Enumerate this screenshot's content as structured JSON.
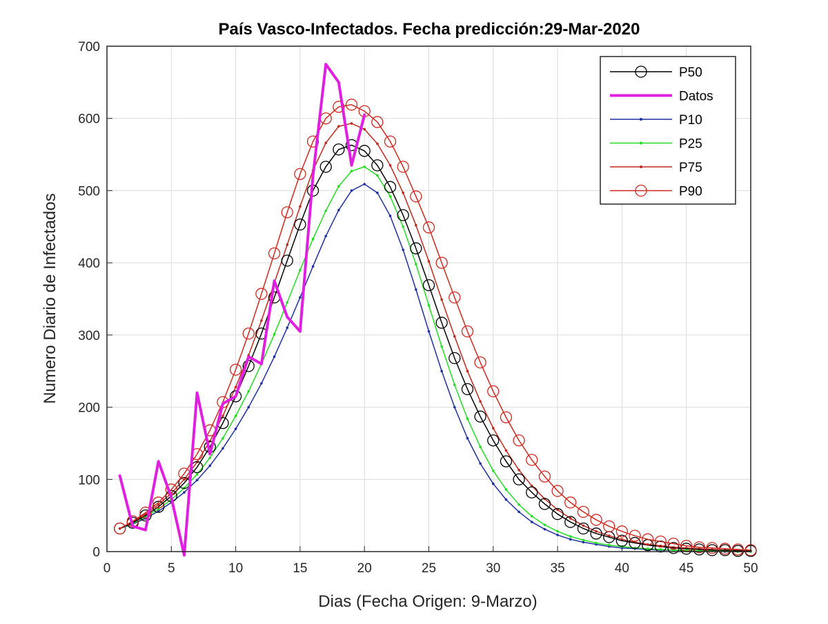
{
  "chart_data": {
    "type": "line",
    "title": "País Vasco-Infectados. Fecha predicción:29-Mar-2020",
    "xlabel": "Dias (Fecha Origen: 9-Marzo)",
    "ylabel": "Numero Diario de Infectados",
    "xlim": [
      0,
      50
    ],
    "ylim": [
      0,
      700
    ],
    "xticks": [
      0,
      5,
      10,
      15,
      20,
      25,
      30,
      35,
      40,
      45,
      50
    ],
    "yticks": [
      0,
      100,
      200,
      300,
      400,
      500,
      600,
      700
    ],
    "grid": true,
    "legend_position": "top-right",
    "series": [
      {
        "name": "P50",
        "color": "#000000",
        "marker": "circle",
        "lineWidth": 1.5,
        "x": [
          1,
          2,
          3,
          4,
          5,
          6,
          7,
          8,
          9,
          10,
          11,
          12,
          13,
          14,
          15,
          16,
          17,
          18,
          19,
          20,
          21,
          22,
          23,
          24,
          25,
          26,
          27,
          28,
          29,
          30,
          31,
          32,
          33,
          34,
          35,
          36,
          37,
          38,
          39,
          40,
          41,
          42,
          43,
          44,
          45,
          46,
          47,
          48,
          49,
          50
        ],
        "values": [
          32,
          40,
          50,
          62,
          77,
          95,
          117,
          145,
          178,
          215,
          257,
          302,
          352,
          403,
          453,
          500,
          533,
          557,
          563,
          555,
          535,
          505,
          466,
          420,
          369,
          317,
          268,
          225,
          187,
          154,
          125,
          100,
          82,
          66,
          52,
          41,
          32,
          25,
          20,
          15,
          12,
          9,
          7,
          5,
          4,
          3,
          2,
          2,
          1,
          1
        ]
      },
      {
        "name": "Datos",
        "color": "#e020e0",
        "marker": "none",
        "lineWidth": 4,
        "x": [
          1,
          2,
          3,
          4,
          5,
          6,
          7,
          8,
          9,
          10,
          11,
          12,
          13,
          14,
          15,
          16,
          17,
          18,
          19,
          20
        ],
        "values": [
          105,
          35,
          30,
          125,
          75,
          -5,
          220,
          135,
          205,
          215,
          270,
          260,
          375,
          325,
          305,
          520,
          675,
          650,
          535,
          605
        ]
      },
      {
        "name": "P10",
        "color": "#1f2fa0",
        "marker": "dot",
        "lineWidth": 1.5,
        "x": [
          1,
          2,
          3,
          4,
          5,
          6,
          7,
          8,
          9,
          10,
          11,
          12,
          13,
          14,
          15,
          16,
          17,
          18,
          19,
          20,
          21,
          22,
          23,
          24,
          25,
          26,
          27,
          28,
          29,
          30,
          31,
          32,
          33,
          34,
          35,
          36,
          37,
          38,
          39,
          40,
          41,
          42,
          43,
          44,
          45,
          46,
          47,
          48,
          49,
          50
        ],
        "values": [
          32,
          38,
          46,
          56,
          68,
          82,
          99,
          119,
          143,
          170,
          200,
          233,
          270,
          310,
          352,
          395,
          437,
          473,
          500,
          509,
          497,
          465,
          418,
          363,
          305,
          250,
          200,
          157,
          122,
          94,
          72,
          55,
          41,
          31,
          23,
          17,
          13,
          10,
          7,
          5,
          4,
          3,
          2,
          2,
          1,
          1,
          1,
          0,
          0,
          0
        ]
      },
      {
        "name": "P25",
        "color": "#22dd22",
        "marker": "dot",
        "lineWidth": 1.5,
        "x": [
          1,
          2,
          3,
          4,
          5,
          6,
          7,
          8,
          9,
          10,
          11,
          12,
          13,
          14,
          15,
          16,
          17,
          18,
          19,
          20,
          21,
          22,
          23,
          24,
          25,
          26,
          27,
          28,
          29,
          30,
          31,
          32,
          33,
          34,
          35,
          36,
          37,
          38,
          39,
          40,
          41,
          42,
          43,
          44,
          45,
          46,
          47,
          48,
          49,
          50
        ],
        "values": [
          32,
          39,
          48,
          59,
          72,
          88,
          107,
          130,
          157,
          188,
          222,
          260,
          301,
          345,
          390,
          433,
          472,
          506,
          527,
          533,
          521,
          492,
          450,
          398,
          341,
          284,
          231,
          184,
          145,
          112,
          86,
          65,
          49,
          37,
          28,
          21,
          16,
          12,
          9,
          7,
          5,
          4,
          3,
          2,
          2,
          1,
          1,
          1,
          0,
          0
        ]
      },
      {
        "name": "P75",
        "color": "#c0281e",
        "marker": "dot",
        "lineWidth": 1.5,
        "x": [
          1,
          2,
          3,
          4,
          5,
          6,
          7,
          8,
          9,
          10,
          11,
          12,
          13,
          14,
          15,
          16,
          17,
          18,
          19,
          20,
          21,
          22,
          23,
          24,
          25,
          26,
          27,
          28,
          29,
          30,
          31,
          32,
          33,
          34,
          35,
          36,
          37,
          38,
          39,
          40,
          41,
          42,
          43,
          44,
          45,
          46,
          47,
          48,
          49,
          50
        ],
        "values": [
          32,
          41,
          52,
          65,
          81,
          100,
          124,
          153,
          188,
          228,
          272,
          320,
          372,
          425,
          478,
          528,
          566,
          589,
          593,
          585,
          565,
          535,
          497,
          452,
          402,
          349,
          298,
          250,
          208,
          171,
          140,
          113,
          91,
          73,
          58,
          46,
          36,
          28,
          22,
          17,
          13,
          10,
          8,
          6,
          5,
          4,
          3,
          2,
          2,
          1
        ]
      },
      {
        "name": "P90",
        "color": "#d02820",
        "marker": "circle",
        "lineWidth": 1.5,
        "x": [
          1,
          2,
          3,
          4,
          5,
          6,
          7,
          8,
          9,
          10,
          11,
          12,
          13,
          14,
          15,
          16,
          17,
          18,
          19,
          20,
          21,
          22,
          23,
          24,
          25,
          26,
          27,
          28,
          29,
          30,
          31,
          32,
          33,
          34,
          35,
          36,
          37,
          38,
          39,
          40,
          41,
          42,
          43,
          44,
          45,
          46,
          47,
          48,
          49,
          50
        ],
        "values": [
          32,
          42,
          54,
          68,
          86,
          108,
          135,
          168,
          207,
          252,
          302,
          357,
          413,
          470,
          523,
          568,
          600,
          616,
          619,
          610,
          595,
          568,
          533,
          492,
          449,
          400,
          352,
          305,
          262,
          222,
          186,
          154,
          127,
          104,
          84,
          68,
          55,
          44,
          35,
          28,
          22,
          17,
          14,
          11,
          8,
          6,
          5,
          4,
          3,
          2
        ]
      }
    ]
  }
}
